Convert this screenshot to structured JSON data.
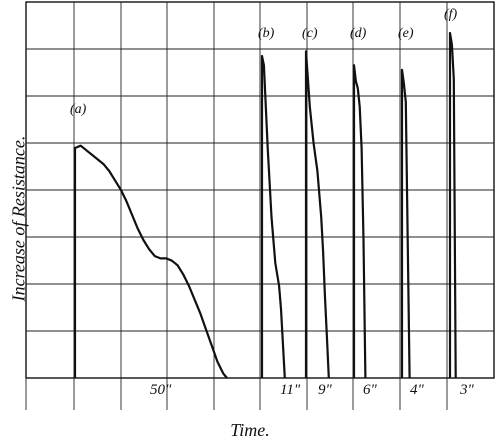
{
  "chart_data": {
    "type": "line",
    "xlabel": "Time.",
    "ylabel": "Increase of Resistance.",
    "grid": true,
    "series": [
      {
        "name": "(a)",
        "duration_label": "50\"",
        "points": [
          [
            0,
            0
          ],
          [
            0,
            100
          ],
          [
            3,
            101
          ],
          [
            6,
            99
          ],
          [
            9,
            97
          ],
          [
            12,
            95
          ],
          [
            15,
            93
          ],
          [
            18,
            90
          ],
          [
            21,
            86
          ],
          [
            24,
            82
          ],
          [
            27,
            77
          ],
          [
            30,
            71
          ],
          [
            33,
            65
          ],
          [
            36,
            60
          ],
          [
            39,
            56
          ],
          [
            42,
            53
          ],
          [
            45,
            52
          ],
          [
            48,
            52
          ],
          [
            51,
            51
          ],
          [
            54,
            49
          ],
          [
            57,
            45
          ],
          [
            60,
            40
          ],
          [
            63,
            34
          ],
          [
            66,
            28
          ],
          [
            69,
            21
          ],
          [
            72,
            14
          ],
          [
            75,
            7
          ],
          [
            78,
            2
          ],
          [
            80,
            0
          ]
        ]
      },
      {
        "name": "(b)",
        "duration_label": "11\"",
        "points": [
          [
            0,
            0
          ],
          [
            0,
            140
          ],
          [
            1,
            136
          ],
          [
            2,
            118
          ],
          [
            3,
            100
          ],
          [
            4,
            85
          ],
          [
            5,
            70
          ],
          [
            6,
            60
          ],
          [
            7,
            50
          ],
          [
            8,
            45
          ],
          [
            9,
            40
          ],
          [
            10,
            30
          ],
          [
            11,
            15
          ],
          [
            12,
            0
          ]
        ]
      },
      {
        "name": "(c)",
        "duration_label": "9\"",
        "points": [
          [
            0,
            0
          ],
          [
            0,
            142
          ],
          [
            1,
            130
          ],
          [
            2,
            118
          ],
          [
            3,
            110
          ],
          [
            4,
            102
          ],
          [
            5,
            96
          ],
          [
            6,
            90
          ],
          [
            7,
            80
          ],
          [
            8,
            70
          ],
          [
            9,
            55
          ],
          [
            10,
            35
          ],
          [
            11,
            18
          ],
          [
            12,
            0
          ]
        ]
      },
      {
        "name": "(d)",
        "duration_label": "6\"",
        "points": [
          [
            0,
            0
          ],
          [
            0,
            136
          ],
          [
            1,
            129
          ],
          [
            2,
            126
          ],
          [
            3,
            118
          ],
          [
            4,
            100
          ],
          [
            5,
            60
          ],
          [
            6,
            0
          ]
        ]
      },
      {
        "name": "(e)",
        "duration_label": "4\"",
        "points": [
          [
            0,
            0
          ],
          [
            0,
            134
          ],
          [
            1,
            128
          ],
          [
            2,
            120
          ],
          [
            3,
            60
          ],
          [
            4,
            0
          ]
        ]
      },
      {
        "name": "(f)",
        "duration_label": "3\"",
        "points": [
          [
            0,
            0
          ],
          [
            0,
            150
          ],
          [
            1,
            145
          ],
          [
            2,
            130
          ],
          [
            3,
            0
          ]
        ]
      }
    ]
  }
}
